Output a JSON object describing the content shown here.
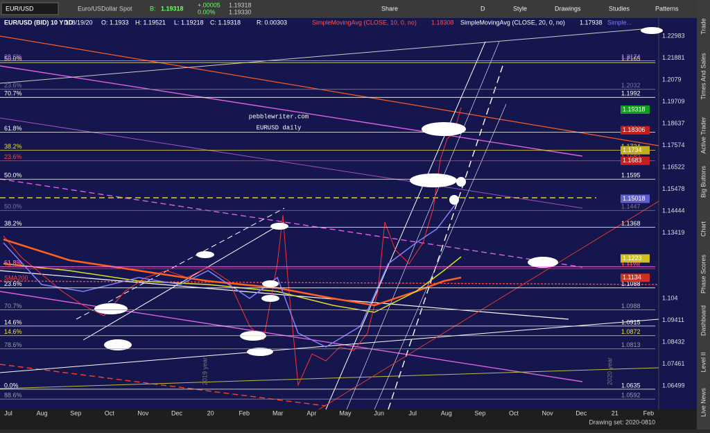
{
  "toolbar": {
    "symbol": "EUR/USD",
    "description": "Euro/USDollar Spot",
    "bid_label": "B:",
    "bid": "1.19318",
    "change": "+.00005",
    "change_pct": "0.00%",
    "quote_b": "1.19318",
    "quote_a": "1.19330",
    "buttons": [
      "Share",
      "D",
      "Style",
      "Drawings",
      "Studies",
      "Patterns"
    ]
  },
  "chart_header": {
    "symbol": "EUR/USD (BID) 10 Y 1D",
    "fields": [
      "D: 8/19/20",
      "O: 1.1933",
      "H: 1.19521",
      "L: 1.19218",
      "C: 1.19318",
      "R: 0.00303"
    ],
    "study1": "SimpleMovingAvg (CLOSE, 10, 0, no)",
    "study1_value": "1.18308",
    "study2": "SimpleMovingAvg (CLOSE, 20, 0, no)",
    "study2_value": "1.17938",
    "study3": "Simple..."
  },
  "annotations": {
    "site": "pebblewriter.com",
    "subtitle": "EURUSD daily",
    "sma": "SMA200",
    "year1": "2019 year",
    "year2": "2020 year"
  },
  "price_axis": [
    "1.22983",
    "1.21881",
    "1.2079",
    "1.19709",
    "1.18637",
    "1.17574",
    "1.16522",
    "1.15478",
    "1.14444",
    "1.13419",
    "1.104",
    "1.09411",
    "1.08432",
    "1.07461",
    "1.06499"
  ],
  "fib_levels": [
    {
      "left": "50.0%",
      "right": "1.2165",
      "color": "#e8e070"
    },
    {
      "left": "28.6%",
      "right": "1.2174",
      "color": "#c080ff"
    },
    {
      "left": "23.6%",
      "right": "1.2032",
      "color": "#7a7aa0"
    },
    {
      "left": "70.7%",
      "right": "1.1992",
      "color": "#ffffff"
    },
    {
      "left": "61.8%",
      "right": "1.1821",
      "color": "#ffffff"
    },
    {
      "left": "38.2%",
      "right": "1.1734",
      "color": "#e8e040"
    },
    {
      "left": "23.6%",
      "right": "1.1683",
      "color": "#ff4040"
    },
    {
      "left": "50.0%",
      "right": "1.1595",
      "color": "#ffffff"
    },
    {
      "left": "50.0%",
      "right": "1.1447",
      "color": "#7a7aa0"
    },
    {
      "left": "38.2%",
      "right": "1.1368",
      "color": "#ffffff"
    },
    {
      "left": "61.8%",
      "right": "1.1185",
      "color": "#ff70ff"
    },
    {
      "left": "14.6%",
      "right": "1.1176",
      "color": "#ff4040"
    },
    {
      "left": "23.6%",
      "right": "1.1088",
      "color": "#ffffff"
    },
    {
      "left": "70.7%",
      "right": "1.0988",
      "color": "#9a9ab0"
    },
    {
      "left": "14.6%",
      "right": "1.0915",
      "color": "#ffffff"
    },
    {
      "left": "14.6%",
      "right": "1.0872",
      "color": "#e8e040"
    },
    {
      "left": "78.6%",
      "right": "1.0813",
      "color": "#9a9ab0"
    },
    {
      "left": "0.0%",
      "right": "1.0635",
      "color": "#ffffff"
    },
    {
      "left": "88.6%",
      "right": "1.0592",
      "color": "#9a9ab0"
    }
  ],
  "price_tags": [
    {
      "text": "1.19318",
      "color": "#10a020"
    },
    {
      "text": "1.18306",
      "color": "#c02020"
    },
    {
      "text": "1.1734",
      "color": "#c0b020"
    },
    {
      "text": "1.1683",
      "color": "#c02020"
    },
    {
      "text": "1.15018",
      "color": "#6060d0"
    },
    {
      "text": "1.1223",
      "color": "#d0c020"
    },
    {
      "text": "1.1134",
      "color": "#d03020"
    }
  ],
  "time_axis": [
    "Jul",
    "Aug",
    "Sep",
    "Oct",
    "Nov",
    "Dec",
    "20",
    "Feb",
    "Mar",
    "Apr",
    "May",
    "Jun",
    "Jul",
    "Aug",
    "Sep",
    "Oct",
    "Nov",
    "Dec",
    "21",
    "Feb"
  ],
  "status": "Drawing set: 2020-0810",
  "side_tabs": [
    "Trade",
    "Times And Sales",
    "Active Trader",
    "Big Buttons",
    "Chart",
    "Phase Scores",
    "Dashboard",
    "Level II",
    "Live News"
  ]
}
